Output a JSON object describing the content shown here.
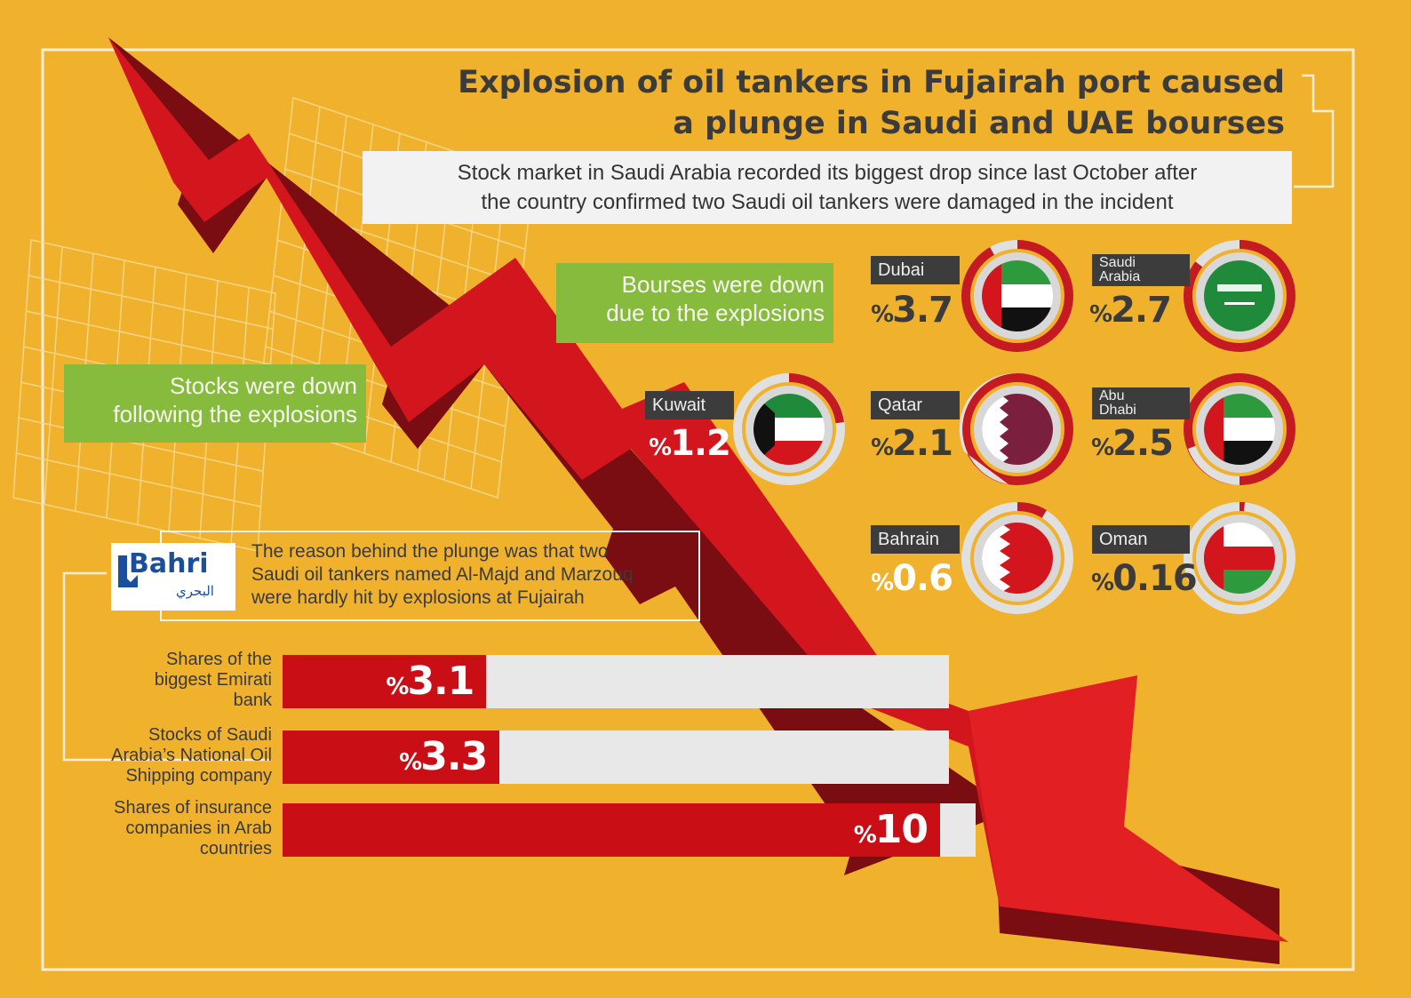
{
  "title_line1": "Explosion of oil tankers in Fujairah port caused",
  "title_line2": "a plunge in Saudi and UAE bourses",
  "subtitle_line1": "Stock market in Saudi Arabia recorded its biggest drop since last October after",
  "subtitle_line2": "the country confirmed two Saudi oil tankers were damaged in the incident",
  "callouts": {
    "bourses_line1": "Bourses were down",
    "bourses_line2": "due to the explosions",
    "stocks_line1": "Stocks were down",
    "stocks_line2": "following the explosions"
  },
  "percent_sign": "%",
  "markets": [
    {
      "name": "Dubai",
      "value": "3.7",
      "flag": "uae-flag"
    },
    {
      "name_line1": "Saudi",
      "name_line2": "Arabia",
      "value": "2.7",
      "flag": "saudi-flag"
    },
    {
      "name": "Kuwait",
      "value": "1.2",
      "flag": "kuwait-flag"
    },
    {
      "name": "Qatar",
      "value": "2.1",
      "flag": "qatar-flag"
    },
    {
      "name_line1": "Abu",
      "name_line2": "Dhabi",
      "value": "2.5",
      "flag": "uae-flag"
    },
    {
      "name": "Bahrain",
      "value": "0.6",
      "flag": "bahrain-flag"
    },
    {
      "name": "Oman",
      "value": "0.16",
      "flag": "oman-flag"
    }
  ],
  "bahri": {
    "name": "Bahri",
    "arabic": "البحري",
    "reason_line1": "The reason behind the plunge was that two",
    "reason_line2": "Saudi oil tankers named Al-Majd and Marzouq",
    "reason_line3": "were hardly hit by explosions at Fujairah"
  },
  "bars": [
    {
      "label_line1": "Shares of the",
      "label_line2": "biggest Emirati",
      "label_line3": "bank",
      "value": "3.1",
      "fill_fraction": 0.31
    },
    {
      "label_line1": "Stocks of Saudi",
      "label_line2": "Arabia’s National Oil",
      "label_line3": "Shipping company",
      "value": "3.3",
      "fill_fraction": 0.33
    },
    {
      "label_line1": "Shares of insurance",
      "label_line2": "companies in Arab",
      "label_line3": "countries",
      "value": "10",
      "fill_fraction": 1.0
    }
  ],
  "colors": {
    "background": "#f0b22c",
    "arrow": "#d3151d",
    "green": "#86bb3e",
    "label_bg": "#3c3c3c",
    "bar": "#c90e16"
  }
}
